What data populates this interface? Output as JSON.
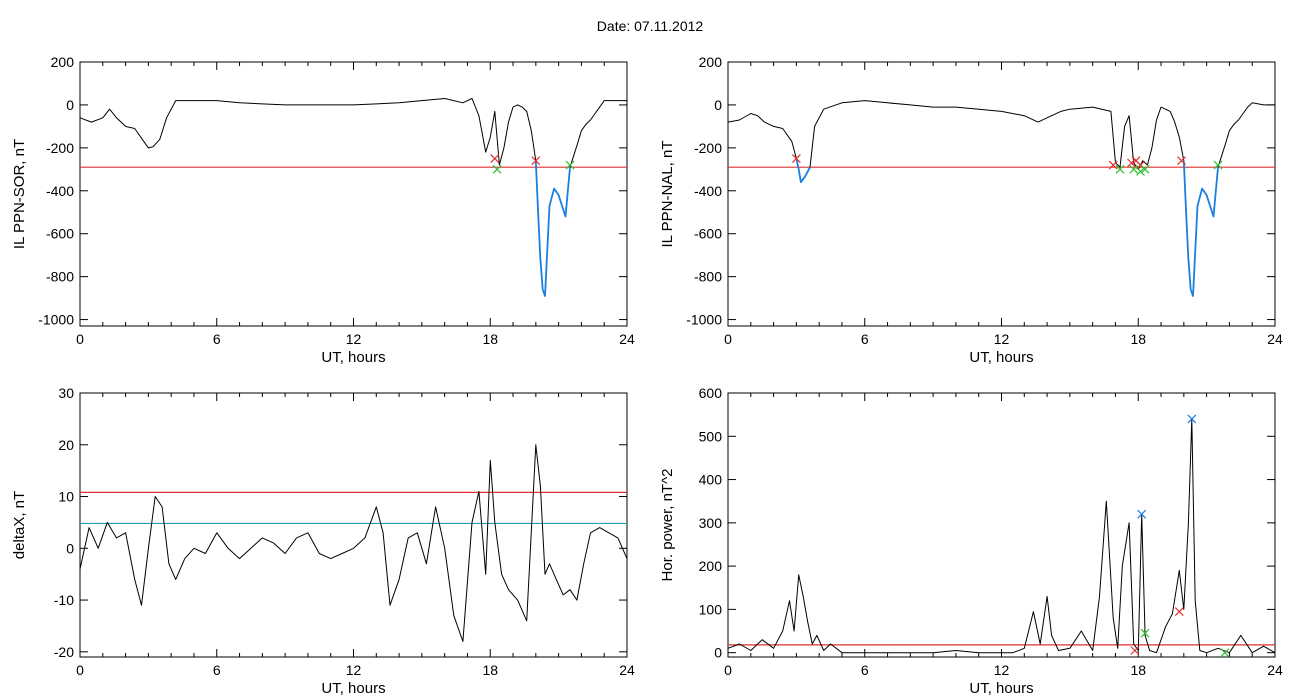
{
  "header": {
    "date_label": "Date:  07.11.2012"
  },
  "chart_data": [
    {
      "type": "line",
      "ylabel": "IL PPN-SOR, nT",
      "xlabel": "UT, hours",
      "xlim": [
        0,
        24
      ],
      "ylim": [
        -1030,
        200
      ],
      "xticks": [
        0,
        6,
        12,
        18,
        24
      ],
      "yticks": [
        200,
        0,
        -200,
        -400,
        -600,
        -800,
        -1000
      ],
      "threshold": {
        "y": -290,
        "color": "#e03030"
      },
      "series": [
        {
          "color": "#000000",
          "x": [
            0,
            0.5,
            1,
            1.3,
            1.6,
            2,
            2.4,
            2.8,
            3.0,
            3.2,
            3.5,
            3.8,
            4.2,
            5,
            6,
            7,
            8,
            9,
            10,
            11,
            12,
            13,
            14,
            15,
            16,
            16.8,
            17.2,
            17.5,
            17.8,
            18.0,
            18.2,
            18.4,
            18.6,
            18.8,
            19.0,
            19.2,
            19.4,
            19.6,
            19.8,
            20.0
          ],
          "y": [
            -60,
            -80,
            -60,
            -20,
            -60,
            -100,
            -110,
            -170,
            -200,
            -195,
            -160,
            -60,
            20,
            20,
            20,
            10,
            5,
            0,
            0,
            0,
            0,
            5,
            10,
            20,
            30,
            10,
            30,
            -50,
            -220,
            -150,
            -30,
            -280,
            -200,
            -80,
            -10,
            0,
            -10,
            -30,
            -120,
            -260
          ]
        },
        {
          "color": "#1a7fe0",
          "x": [
            20.0,
            20.1,
            20.2,
            20.3,
            20.4,
            20.6,
            20.8,
            21.0,
            21.3,
            21.5
          ],
          "y": [
            -260,
            -500,
            -720,
            -860,
            -890,
            -470,
            -390,
            -420,
            -520,
            -290
          ]
        },
        {
          "color": "#000000",
          "x": [
            21.5,
            21.8,
            22.0,
            22.2,
            22.4,
            22.6,
            22.8,
            23.0,
            23.5,
            24
          ],
          "y": [
            -290,
            -190,
            -120,
            -90,
            -70,
            -40,
            -10,
            20,
            20,
            20
          ]
        }
      ],
      "markers": [
        {
          "x": 18.2,
          "y": -250,
          "color": "#e03030"
        },
        {
          "x": 20.0,
          "y": -260,
          "color": "#e03030"
        },
        {
          "x": 18.3,
          "y": -300,
          "color": "#30c030"
        },
        {
          "x": 21.5,
          "y": -280,
          "color": "#30c030"
        }
      ]
    },
    {
      "type": "line",
      "ylabel": "IL PPN-NAL, nT",
      "xlabel": "UT, hours",
      "xlim": [
        0,
        24
      ],
      "ylim": [
        -1030,
        200
      ],
      "xticks": [
        0,
        6,
        12,
        18,
        24
      ],
      "yticks": [
        200,
        0,
        -200,
        -400,
        -600,
        -800,
        -1000
      ],
      "threshold": {
        "y": -290,
        "color": "#e03030"
      },
      "series": [
        {
          "color": "#000000",
          "x": [
            0,
            0.5,
            1,
            1.3,
            1.6,
            2,
            2.4,
            2.8,
            3.0
          ],
          "y": [
            -80,
            -70,
            -40,
            -50,
            -80,
            -100,
            -110,
            -170,
            -250
          ]
        },
        {
          "color": "#1a7fe0",
          "x": [
            3.0,
            3.1,
            3.2,
            3.4,
            3.6
          ],
          "y": [
            -250,
            -300,
            -360,
            -330,
            -290
          ]
        },
        {
          "color": "#000000",
          "x": [
            3.6,
            3.8,
            4.2,
            5,
            6,
            7,
            8,
            9,
            10,
            11,
            12,
            13,
            13.6,
            14,
            14.6,
            15,
            16,
            16.8,
            17.0,
            17.2,
            17.4,
            17.6,
            17.8,
            18.0,
            18.2,
            18.4,
            18.6,
            18.8,
            19.0,
            19.2,
            19.4,
            19.6,
            19.8,
            20.0
          ],
          "y": [
            -290,
            -100,
            -20,
            10,
            20,
            10,
            0,
            -10,
            -10,
            -20,
            -30,
            -50,
            -80,
            -60,
            -30,
            -20,
            -10,
            -30,
            -270,
            -290,
            -100,
            -50,
            -270,
            -300,
            -260,
            -280,
            -200,
            -70,
            -10,
            -20,
            -30,
            -80,
            -150,
            -260
          ]
        },
        {
          "color": "#1a7fe0",
          "x": [
            20.0,
            20.1,
            20.2,
            20.3,
            20.4,
            20.6,
            20.8,
            21.0,
            21.3,
            21.5
          ],
          "y": [
            -260,
            -500,
            -720,
            -860,
            -890,
            -470,
            -390,
            -420,
            -520,
            -290
          ]
        },
        {
          "color": "#000000",
          "x": [
            21.5,
            21.8,
            22.0,
            22.2,
            22.4,
            22.6,
            22.8,
            23.0,
            23.5,
            24
          ],
          "y": [
            -290,
            -190,
            -120,
            -90,
            -70,
            -40,
            -10,
            10,
            0,
            0
          ]
        }
      ],
      "markers": [
        {
          "x": 3.0,
          "y": -250,
          "color": "#e03030"
        },
        {
          "x": 16.9,
          "y": -280,
          "color": "#e03030"
        },
        {
          "x": 17.7,
          "y": -270,
          "color": "#e03030"
        },
        {
          "x": 17.9,
          "y": -260,
          "color": "#e03030"
        },
        {
          "x": 18.1,
          "y": -280,
          "color": "#e03030"
        },
        {
          "x": 19.9,
          "y": -260,
          "color": "#e03030"
        },
        {
          "x": 17.2,
          "y": -300,
          "color": "#30c030"
        },
        {
          "x": 17.8,
          "y": -300,
          "color": "#30c030"
        },
        {
          "x": 18.1,
          "y": -310,
          "color": "#30c030"
        },
        {
          "x": 18.3,
          "y": -300,
          "color": "#30c030"
        },
        {
          "x": 21.5,
          "y": -280,
          "color": "#30c030"
        }
      ]
    },
    {
      "type": "line",
      "ylabel": "deltaX, nT",
      "xlabel": "UT, hours",
      "xlim": [
        0,
        24
      ],
      "ylim": [
        -21,
        30
      ],
      "xticks": [
        0,
        6,
        12,
        18,
        24
      ],
      "yticks": [
        30,
        20,
        10,
        0,
        -10,
        -20
      ],
      "threshold": {
        "y": 10.8,
        "color": "#e03030"
      },
      "threshold2": {
        "y": 4.8,
        "color": "#20a0b0"
      },
      "series": [
        {
          "color": "#000000",
          "x": [
            0,
            0.4,
            0.8,
            1.2,
            1.6,
            2.0,
            2.4,
            2.7,
            3.0,
            3.3,
            3.6,
            3.9,
            4.2,
            4.6,
            5.0,
            5.5,
            6.0,
            6.5,
            7.0,
            7.5,
            8.0,
            8.5,
            9.0,
            9.5,
            10.0,
            10.5,
            11.0,
            11.5,
            12.0,
            12.5,
            13.0,
            13.3,
            13.6,
            14.0,
            14.4,
            14.8,
            15.2,
            15.6,
            16.0,
            16.4,
            16.8,
            17.2,
            17.5,
            17.8,
            18.0,
            18.2,
            18.5,
            18.8,
            19.2,
            19.6,
            20.0,
            20.2,
            20.4,
            20.6,
            20.9,
            21.2,
            21.5,
            21.8,
            22.1,
            22.4,
            22.8,
            23.2,
            23.6,
            24.0
          ],
          "y": [
            -4,
            4,
            0,
            5,
            2,
            3,
            -6,
            -11,
            0,
            10,
            8,
            -3,
            -6,
            -2,
            0,
            -1,
            3,
            0,
            -2,
            0,
            2,
            1,
            -1,
            2,
            3,
            -1,
            -2,
            -1,
            0,
            2,
            8,
            3,
            -11,
            -6,
            2,
            3,
            -3,
            8,
            0,
            -13,
            -18,
            5,
            11,
            -5,
            17,
            5,
            -5,
            -8,
            -10,
            -14,
            20,
            12,
            -5,
            -3,
            -6,
            -9,
            -8,
            -10,
            -3,
            3,
            4,
            3,
            2,
            -2
          ]
        }
      ],
      "markers": []
    },
    {
      "type": "line",
      "ylabel": "Hor. power, nT^2",
      "xlabel": "UT, hours",
      "xlim": [
        0,
        24
      ],
      "ylim": [
        -10,
        600
      ],
      "xticks": [
        0,
        6,
        12,
        18,
        24
      ],
      "yticks": [
        600,
        500,
        400,
        300,
        200,
        100,
        0
      ],
      "threshold": {
        "y": 18,
        "color": "#e03030"
      },
      "series": [
        {
          "color": "#000000",
          "x": [
            0,
            0.5,
            1.0,
            1.5,
            2.0,
            2.4,
            2.7,
            2.9,
            3.1,
            3.3,
            3.5,
            3.7,
            3.9,
            4.2,
            4.5,
            5.0,
            5.5,
            6.0,
            7.0,
            8.0,
            9.0,
            10.0,
            11.0,
            12.0,
            12.5,
            13.0,
            13.4,
            13.7,
            14.0,
            14.2,
            14.5,
            15.0,
            15.5,
            16.0,
            16.3,
            16.6,
            16.9,
            17.1,
            17.3,
            17.6,
            17.8,
            18.0,
            18.15,
            18.3,
            18.5,
            18.8,
            19.2,
            19.5,
            19.8,
            20.0,
            20.2,
            20.35,
            20.5,
            20.7,
            21.0,
            21.5,
            22.0,
            22.5,
            23.0,
            23.5,
            24.0
          ],
          "y": [
            10,
            20,
            5,
            30,
            10,
            50,
            120,
            50,
            180,
            130,
            70,
            20,
            40,
            5,
            20,
            0,
            0,
            0,
            0,
            0,
            0,
            5,
            0,
            0,
            0,
            10,
            95,
            20,
            130,
            40,
            5,
            10,
            50,
            5,
            130,
            350,
            80,
            10,
            200,
            300,
            20,
            5,
            320,
            40,
            5,
            0,
            60,
            90,
            190,
            100,
            300,
            540,
            120,
            5,
            0,
            10,
            0,
            40,
            0,
            15,
            0
          ]
        }
      ],
      "markers": [
        {
          "x": 18.15,
          "y": 320,
          "color": "#1a7fe0"
        },
        {
          "x": 20.35,
          "y": 540,
          "color": "#1a7fe0"
        },
        {
          "x": 19.8,
          "y": 95,
          "color": "#e03030"
        },
        {
          "x": 17.85,
          "y": 5,
          "color": "#e03030"
        },
        {
          "x": 18.3,
          "y": 45,
          "color": "#30c030"
        },
        {
          "x": 21.8,
          "y": 0,
          "color": "#30c030"
        }
      ]
    }
  ]
}
